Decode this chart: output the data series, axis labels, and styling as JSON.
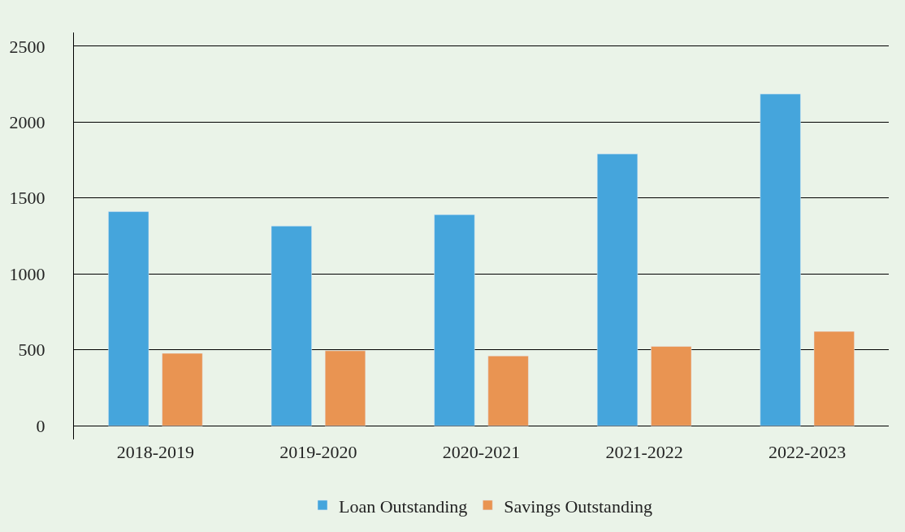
{
  "chart_data": {
    "type": "bar",
    "categories": [
      "2018-2019",
      "2019-2020",
      "2020-2021",
      "2021-2022",
      "2022-2023"
    ],
    "series": [
      {
        "name": "Loan Outstanding",
        "color": "#45a5dc",
        "values": [
          1410,
          1315,
          1390,
          1790,
          2185
        ]
      },
      {
        "name": "Savings Outstanding",
        "color": "#e99452",
        "values": [
          477,
          494,
          460,
          523,
          621
        ]
      }
    ],
    "ylim": [
      -90,
      2590
    ],
    "yticks": [
      0,
      500,
      1000,
      1500,
      2000,
      2500
    ],
    "grid": "y",
    "legend": "bottom"
  }
}
